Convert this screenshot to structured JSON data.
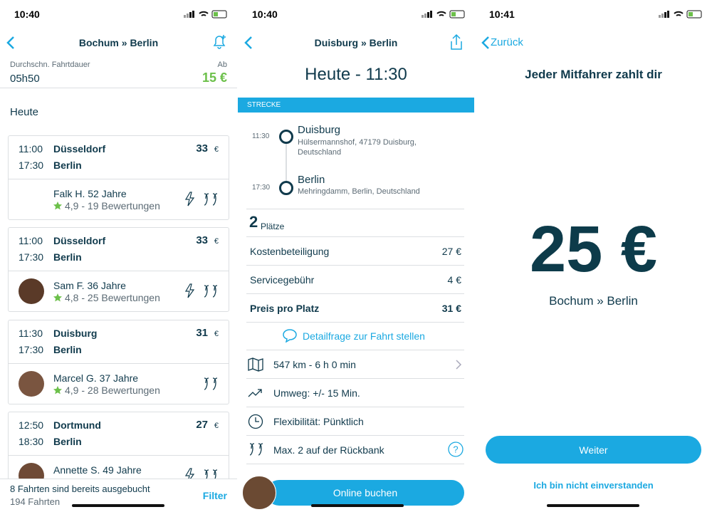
{
  "screens": [
    {
      "time": "10:40",
      "title": "Bochum » Berlin",
      "summary": {
        "label": "Durchschn. Fahrtdauer",
        "duration": "05h50",
        "from_label": "Ab",
        "price": "15 €"
      },
      "section": "Heute",
      "rides": [
        {
          "depart": "11:00",
          "from": "Düsseldorf",
          "arrive": "17:30",
          "to": "Berlin",
          "price": "33",
          "currency": "€",
          "driver": "Falk H. 52 Jahre",
          "rating": "4,9 - 19 Bewertungen"
        },
        {
          "depart": "11:00",
          "from": "Düsseldorf",
          "arrive": "17:30",
          "to": "Berlin",
          "price": "33",
          "currency": "€",
          "driver": "Sam F. 36 Jahre",
          "rating": "4,8 - 25 Bewertungen"
        },
        {
          "depart": "11:30",
          "from": "Duisburg",
          "arrive": "17:30",
          "to": "Berlin",
          "price": "31",
          "currency": "€",
          "driver": "Marcel G. 37 Jahre",
          "rating": "4,9 - 28 Bewertungen"
        },
        {
          "depart": "12:50",
          "from": "Dortmund",
          "arrive": "18:30",
          "to": "Berlin",
          "price": "27",
          "currency": "€",
          "driver": "Annette S. 49 Jahre"
        }
      ],
      "footer": {
        "booked": "8 Fahrten sind bereits ausgebucht",
        "count": "194 Fahrten",
        "filter": "Filter"
      }
    },
    {
      "time": "10:40",
      "title": "Duisburg » Berlin",
      "heading": "Heute - 11:30",
      "section": "STRECKE",
      "stops": [
        {
          "time": "11:30",
          "city": "Duisburg",
          "address": "Hülsermannshof, 47179 Duisburg, Deutschland"
        },
        {
          "time": "17:30",
          "city": "Berlin",
          "address": "Mehringdamm, Berlin, Deutschland"
        }
      ],
      "seats": {
        "count": "2",
        "label": "Plätze"
      },
      "costs": [
        {
          "label": "Kostenbeteiligung",
          "value": "27 €"
        },
        {
          "label": "Servicegebühr",
          "value": "4 €"
        },
        {
          "label": "Preis pro Platz",
          "value": "31 €"
        }
      ],
      "question": "Detailfrage zur Fahrt stellen",
      "info": [
        "547 km - 6 h 0 min",
        "Umweg: +/- 15 Min.",
        "Flexibilität: Pünktlich",
        "Max. 2 auf der Rückbank"
      ],
      "button": "Online buchen"
    },
    {
      "time": "10:41",
      "back": "Zurück",
      "heading": "Jeder Mitfahrer zahlt dir",
      "price": "25 €",
      "route": "Bochum » Berlin",
      "button": "Weiter",
      "decline": "Ich bin nicht einverstanden"
    }
  ]
}
